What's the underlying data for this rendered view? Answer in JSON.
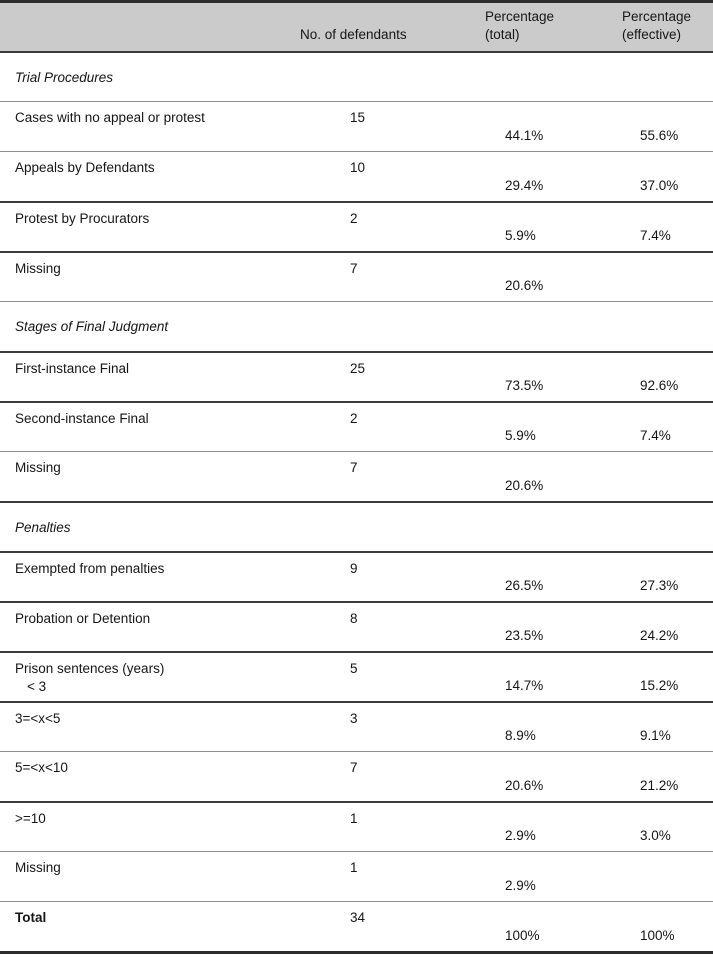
{
  "table": {
    "columns": {
      "label": "",
      "defendants": "No. of defendants",
      "pct_total": {
        "line1": "Percentage",
        "line2": "(total)"
      },
      "pct_effective": {
        "line1": "Percentage",
        "line2": "(effective)"
      }
    },
    "rows": [
      {
        "type": "section",
        "rule": "thick",
        "label": "Trial Procedures"
      },
      {
        "type": "data",
        "rule": "thin",
        "label": "Cases with no appeal or protest",
        "n": "15",
        "pct_total": "44.1%",
        "pct_effective": "55.6%"
      },
      {
        "type": "data",
        "rule": "thin",
        "label": "Appeals by Defendants",
        "n": "10",
        "pct_total": "29.4%",
        "pct_effective": "37.0%"
      },
      {
        "type": "data",
        "rule": "thick",
        "label": "Protest by Procurators",
        "n": "2",
        "pct_total": "5.9%",
        "pct_effective": "7.4%"
      },
      {
        "type": "data",
        "rule": "thick",
        "label": "Missing",
        "n": "7",
        "pct_total": "20.6%",
        "pct_effective": ""
      },
      {
        "type": "section",
        "rule": "thin",
        "label": "Stages of Final Judgment"
      },
      {
        "type": "data",
        "rule": "thick",
        "label": "First-instance Final",
        "n": "25",
        "pct_total": "73.5%",
        "pct_effective": "92.6%"
      },
      {
        "type": "data",
        "rule": "thick",
        "label": "Second-instance Final",
        "n": "2",
        "pct_total": "5.9%",
        "pct_effective": "7.4%"
      },
      {
        "type": "data",
        "rule": "thin",
        "label": "Missing",
        "n": "7",
        "pct_total": "20.6%",
        "pct_effective": ""
      },
      {
        "type": "section",
        "rule": "thick",
        "label": "Penalties"
      },
      {
        "type": "data",
        "rule": "thick",
        "label": "Exempted from penalties",
        "n": "9",
        "pct_total": "26.5%",
        "pct_effective": "27.3%"
      },
      {
        "type": "data",
        "rule": "thick",
        "label": "Probation or Detention",
        "n": "8",
        "pct_total": "23.5%",
        "pct_effective": "24.2%"
      },
      {
        "type": "data",
        "rule": "thick",
        "label": "Prison sentences (years)",
        "sublabel": "< 3",
        "n": "5",
        "pct_total": "14.7%",
        "pct_effective": "15.2%"
      },
      {
        "type": "data",
        "rule": "thick",
        "label": "3=<x<5",
        "n": "3",
        "pct_total": "8.9%",
        "pct_effective": "9.1%"
      },
      {
        "type": "data",
        "rule": "thin",
        "label": "5=<x<10",
        "n": "7",
        "pct_total": "20.6%",
        "pct_effective": "21.2%"
      },
      {
        "type": "data",
        "rule": "thick",
        "label": ">=10",
        "n": "1",
        "pct_total": "2.9%",
        "pct_effective": "3.0%"
      },
      {
        "type": "data",
        "rule": "thin",
        "label": "Missing",
        "n": "1",
        "pct_total": "2.9%",
        "pct_effective": ""
      },
      {
        "type": "data",
        "rule": "thin",
        "label": "Total",
        "bold": true,
        "n": "34",
        "pct_total": "100%",
        "pct_effective": "100%"
      }
    ]
  }
}
